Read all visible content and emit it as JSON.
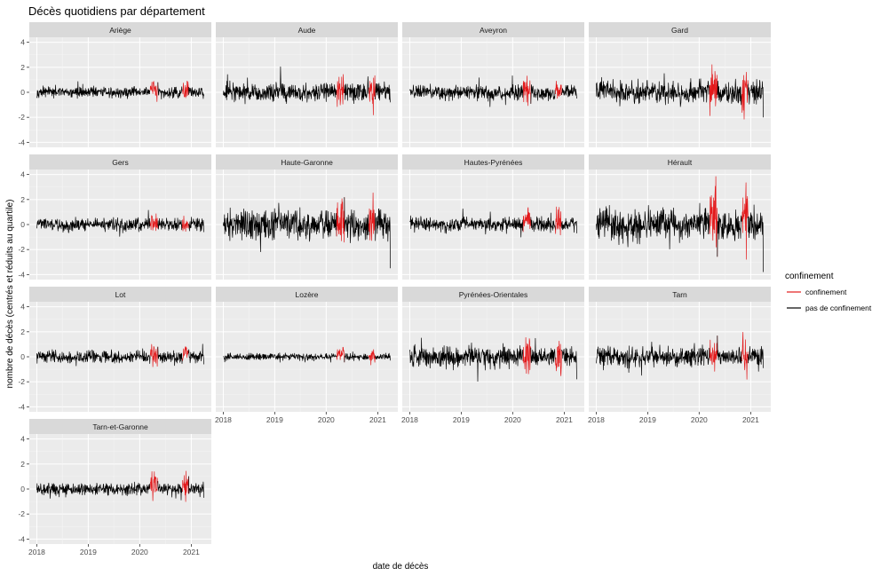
{
  "chart_data": {
    "type": "line",
    "title": "Décès quotidiens par département",
    "xlabel": "date de décès",
    "ylabel": "nombre de décès (centrés et réduits au quartile)",
    "xlim": [
      "2018-01-01",
      "2021-03-31"
    ],
    "ylim": [
      -4,
      4
    ],
    "x_ticks": [
      "2018",
      "2019",
      "2020",
      "2021"
    ],
    "y_ticks": [
      -4,
      -2,
      0,
      2,
      4
    ],
    "grid": true,
    "legend": {
      "title": "confinement",
      "position": "right",
      "entries": [
        {
          "label": "confinement",
          "color": "#e31a1c"
        },
        {
          "label": "pas de confinement",
          "color": "#000000"
        }
      ]
    },
    "confinement_periods": [
      [
        "2020-03-17",
        "2020-05-11"
      ],
      [
        "2020-10-30",
        "2020-12-15"
      ]
    ],
    "panels": [
      {
        "name": "Ariège",
        "spread": 0.25,
        "peak": 0.6,
        "end_value": -0.3
      },
      {
        "name": "Aude",
        "spread": 0.45,
        "peak": 1.1,
        "end_value": -0.8
      },
      {
        "name": "Aveyron",
        "spread": 0.35,
        "peak": 1.0,
        "end_value": -0.5
      },
      {
        "name": "Gard",
        "spread": 0.55,
        "peak": 2.6,
        "end_value": -2.0
      },
      {
        "name": "Gers",
        "spread": 0.3,
        "peak": 0.6,
        "end_value": -0.6
      },
      {
        "name": "Haute-Garonne",
        "spread": 0.7,
        "peak": 2.8,
        "end_value": -3.5
      },
      {
        "name": "Hautes-Pyrénées",
        "spread": 0.35,
        "peak": 1.2,
        "end_value": -0.7
      },
      {
        "name": "Hérault",
        "spread": 0.75,
        "peak": 2.7,
        "end_value": -3.8
      },
      {
        "name": "Lot",
        "spread": 0.3,
        "peak": 1.2,
        "end_value": -0.6
      },
      {
        "name": "Lozère",
        "spread": 0.15,
        "peak": 0.7,
        "end_value": -0.3
      },
      {
        "name": "Pyrénées-Orientales",
        "spread": 0.5,
        "peak": 1.4,
        "end_value": -1.8
      },
      {
        "name": "Tarn",
        "spread": 0.45,
        "peak": 1.9,
        "end_value": -0.9
      },
      {
        "name": "Tarn-et-Garonne",
        "spread": 0.3,
        "peak": 1.8,
        "end_value": -0.7
      }
    ]
  }
}
